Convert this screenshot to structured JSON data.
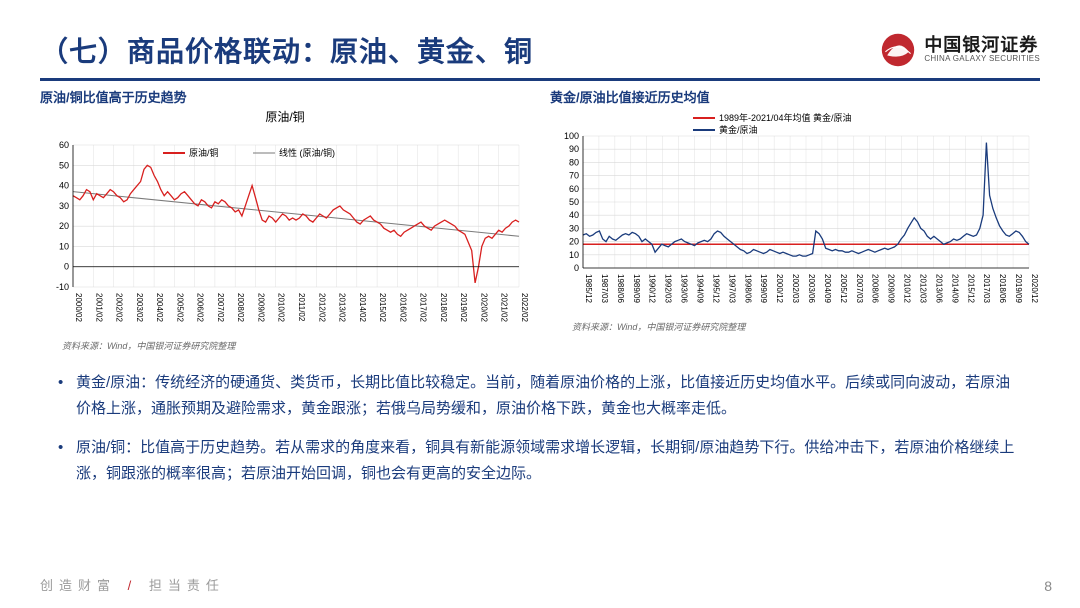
{
  "header": {
    "title": "（七）商品价格联动：原油、黄金、铜",
    "logo_cn": "中国银河证券",
    "logo_en": "CHINA GALAXY SECURITIES"
  },
  "left_chart": {
    "subtitle": "原油/铜比值高于历史趋势",
    "title": "原油/铜",
    "legend_series": "原油/铜",
    "legend_trend": "线性 (原油/铜)",
    "source": "资料来源：Wind，中国银河证券研究院整理",
    "type": "line",
    "series_color": "#d8201f",
    "trend_color": "#7a7a7a",
    "grid_color": "#d9d9d9",
    "background_color": "#ffffff",
    "ylim": [
      -10,
      60
    ],
    "ytick_step": 10,
    "yticks": [
      -10,
      0,
      10,
      20,
      30,
      40,
      50,
      60
    ],
    "x_labels": [
      "2000/02",
      "2001/02",
      "2002/02",
      "2003/02",
      "2004/02",
      "2005/02",
      "2006/02",
      "2007/02",
      "2008/02",
      "2009/02",
      "2010/02",
      "2011/02",
      "2012/02",
      "2013/02",
      "2014/02",
      "2015/02",
      "2016/02",
      "2017/02",
      "2018/02",
      "2019/02",
      "2020/02",
      "2021/02",
      "2022/02"
    ],
    "line_width": 1.3,
    "trend_start": 37,
    "trend_end": 15,
    "values": [
      35,
      34,
      33,
      35,
      38,
      37,
      33,
      36,
      35,
      34,
      36,
      38,
      37,
      35,
      34,
      32,
      33,
      36,
      38,
      40,
      42,
      48,
      50,
      49,
      45,
      42,
      38,
      35,
      37,
      35,
      33,
      34,
      36,
      37,
      35,
      33,
      31,
      30,
      33,
      32,
      30,
      29,
      32,
      31,
      33,
      32,
      30,
      29,
      27,
      28,
      25,
      30,
      35,
      40,
      34,
      28,
      23,
      22,
      25,
      24,
      22,
      24,
      26,
      25,
      23,
      24,
      23,
      24,
      26,
      25,
      23,
      22,
      24,
      26,
      25,
      24,
      26,
      28,
      29,
      30,
      28,
      27,
      26,
      24,
      22,
      21,
      23,
      24,
      25,
      23,
      22,
      21,
      19,
      18,
      17,
      18,
      16,
      15,
      17,
      18,
      19,
      20,
      21,
      22,
      20,
      19,
      18,
      20,
      21,
      22,
      23,
      22,
      21,
      20,
      18,
      17,
      16,
      12,
      8,
      -8,
      0,
      10,
      14,
      15,
      14,
      16,
      18,
      17,
      19,
      20,
      22,
      23,
      22
    ]
  },
  "right_chart": {
    "subtitle": "黄金/原油比值接近历史均值",
    "source": "资料来源：Wind，中国银河证券研究院整理",
    "type": "line",
    "legend_mean": "1989年-2021/04年均值 黄金/原油",
    "legend_series": "黄金/原油",
    "series_color": "#1a3b7c",
    "mean_color": "#d8201f",
    "grid_color": "#d9d9d9",
    "background_color": "#ffffff",
    "ylim": [
      0,
      100
    ],
    "ytick_step": 10,
    "yticks": [
      0,
      10,
      20,
      30,
      40,
      50,
      60,
      70,
      80,
      90,
      100
    ],
    "mean_value": 18,
    "x_labels": [
      "1985/12",
      "1987/03",
      "1988/06",
      "1989/09",
      "1990/12",
      "1992/03",
      "1993/06",
      "1994/09",
      "1995/12",
      "1997/03",
      "1998/06",
      "1999/09",
      "2000/12",
      "2002/03",
      "2003/06",
      "2004/09",
      "2005/12",
      "2007/03",
      "2008/06",
      "2009/09",
      "2010/12",
      "2012/03",
      "2013/06",
      "2014/09",
      "2015/12",
      "2017/03",
      "2018/06",
      "2019/09",
      "2020/12"
    ],
    "line_width": 1.3,
    "values": [
      25,
      26,
      24,
      25,
      27,
      28,
      22,
      20,
      24,
      22,
      21,
      23,
      25,
      26,
      25,
      27,
      26,
      24,
      20,
      22,
      20,
      18,
      12,
      15,
      18,
      17,
      16,
      18,
      20,
      21,
      22,
      20,
      19,
      18,
      17,
      19,
      20,
      21,
      20,
      22,
      26,
      28,
      27,
      24,
      22,
      20,
      18,
      16,
      14,
      13,
      11,
      12,
      14,
      13,
      12,
      11,
      12,
      14,
      13,
      12,
      11,
      12,
      11,
      10,
      9,
      9,
      10,
      9,
      9,
      10,
      11,
      28,
      26,
      22,
      15,
      14,
      13,
      14,
      13,
      13,
      12,
      12,
      13,
      12,
      11,
      12,
      13,
      14,
      13,
      12,
      13,
      14,
      15,
      14,
      15,
      16,
      18,
      22,
      25,
      30,
      34,
      38,
      35,
      30,
      28,
      24,
      22,
      24,
      22,
      20,
      18,
      19,
      20,
      22,
      21,
      22,
      24,
      26,
      25,
      24,
      25,
      30,
      40,
      95,
      55,
      45,
      38,
      32,
      28,
      25,
      24,
      26,
      28,
      27,
      24,
      20,
      18
    ]
  },
  "bullets": {
    "b1": "黄金/原油：传统经济的硬通货、类货币，长期比值比较稳定。当前，随着原油价格的上涨，比值接近历史均值水平。后续或同向波动，若原油价格上涨，通胀预期及避险需求，黄金跟涨；若俄乌局势缓和，原油价格下跌，黄金也大概率走低。",
    "b2": "原油/铜：比值高于历史趋势。若从需求的角度来看，铜具有新能源领域需求增长逻辑，长期铜/原油趋势下行。供给冲击下，若原油价格继续上涨，铜跟涨的概率很高；若原油开始回调，铜也会有更高的安全边际。"
  },
  "footer": {
    "left1": "创造财富",
    "left2": "担当责任",
    "page": "8"
  }
}
